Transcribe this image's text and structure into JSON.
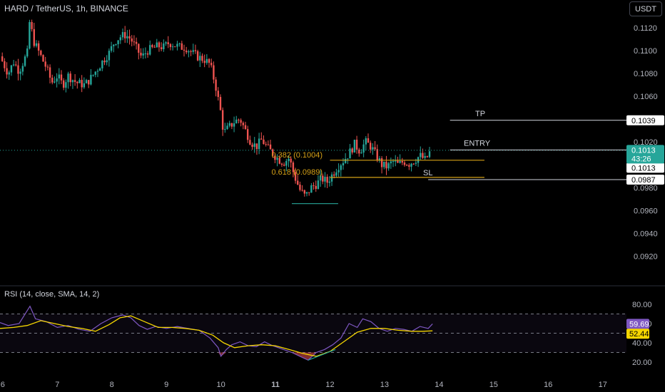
{
  "header": {
    "title": "HARD / TetherUS, 1h, BINANCE",
    "currency_button": "USDT"
  },
  "rsi": {
    "label": "RSI (14, close, SMA, 14, 2)",
    "value_rsi": "59.69",
    "value_sma": "52.44",
    "levels": [
      80,
      70,
      50,
      30,
      20
    ],
    "tick_labels": [
      "80.00",
      "60.00",
      "40.00",
      "20.00"
    ]
  },
  "colors": {
    "up": "#26a69a",
    "down": "#ef5350",
    "rsi_line": "#7e57c2",
    "rsi_sma": "#f5d600",
    "fib": "#d4a017",
    "level_line": "#d1d4dc",
    "last_price_bg": "#26a69a"
  },
  "chart_data": {
    "type": "candlestick",
    "symbol": "HARD / TetherUS",
    "interval": "1h",
    "exchange": "BINANCE",
    "y_ticks": [
      "0.1120",
      "0.1100",
      "0.1080",
      "0.1060",
      "0.1020",
      "0.0980",
      "0.0960",
      "0.0940",
      "0.0920"
    ],
    "y_tick_values": [
      0.112,
      0.11,
      0.108,
      0.106,
      0.102,
      0.098,
      0.096,
      0.094,
      0.092
    ],
    "x_ticks": [
      "6",
      "7",
      "8",
      "9",
      "10",
      "11",
      "12",
      "13",
      "14",
      "15",
      "16",
      "17"
    ],
    "ylim": [
      0.0904,
      0.1135
    ],
    "last_price": {
      "value": "0.1013",
      "countdown": "43:26"
    },
    "levels": [
      {
        "label": "TP",
        "value": 0.1039,
        "tag": "0.1039"
      },
      {
        "label": "ENTRY",
        "value": 0.1013,
        "tag": "0.1013"
      },
      {
        "label": "SL",
        "value": 0.0987,
        "tag": "0.0987"
      }
    ],
    "fib": [
      {
        "label": "0.382 (0.1004)",
        "value": 0.1004
      },
      {
        "label": "0.618 (0.0989)",
        "value": 0.0989
      }
    ],
    "support_level": 0.0966,
    "close_path": [
      [
        5.95,
        0.1095
      ],
      [
        6.1,
        0.108
      ],
      [
        6.2,
        0.109
      ],
      [
        6.3,
        0.1082
      ],
      [
        6.45,
        0.1098
      ],
      [
        6.5,
        0.113
      ],
      [
        6.55,
        0.111
      ],
      [
        6.65,
        0.11
      ],
      [
        6.8,
        0.1085
      ],
      [
        6.9,
        0.1072
      ],
      [
        7.0,
        0.1078
      ],
      [
        7.1,
        0.107
      ],
      [
        7.2,
        0.1078
      ],
      [
        7.35,
        0.1072
      ],
      [
        7.5,
        0.107
      ],
      [
        7.6,
        0.1075
      ],
      [
        7.75,
        0.1085
      ],
      [
        7.85,
        0.1092
      ],
      [
        7.95,
        0.1098
      ],
      [
        8.05,
        0.1108
      ],
      [
        8.15,
        0.1112
      ],
      [
        8.25,
        0.1114
      ],
      [
        8.35,
        0.111
      ],
      [
        8.45,
        0.1102
      ],
      [
        8.55,
        0.1094
      ],
      [
        8.65,
        0.11
      ],
      [
        8.75,
        0.1102
      ],
      [
        8.85,
        0.1104
      ],
      [
        8.95,
        0.1103
      ],
      [
        9.05,
        0.1107
      ],
      [
        9.15,
        0.1105
      ],
      [
        9.25,
        0.1103
      ],
      [
        9.35,
        0.1103
      ],
      [
        9.5,
        0.1097
      ],
      [
        9.6,
        0.1094
      ],
      [
        9.7,
        0.1092
      ],
      [
        9.8,
        0.1088
      ],
      [
        9.9,
        0.107
      ],
      [
        10.0,
        0.1045
      ],
      [
        10.05,
        0.1028
      ],
      [
        10.15,
        0.1033
      ],
      [
        10.25,
        0.1038
      ],
      [
        10.35,
        0.104
      ],
      [
        10.45,
        0.103
      ],
      [
        10.55,
        0.102
      ],
      [
        10.65,
        0.1016
      ],
      [
        10.75,
        0.1022
      ],
      [
        10.85,
        0.1015
      ],
      [
        10.95,
        0.101
      ],
      [
        11.05,
        0.1005
      ],
      [
        11.15,
        0.1002
      ],
      [
        11.25,
        0.1006
      ],
      [
        11.35,
        0.099
      ],
      [
        11.45,
        0.0978
      ],
      [
        11.55,
        0.0972
      ],
      [
        11.65,
        0.098
      ],
      [
        11.75,
        0.0983
      ],
      [
        11.85,
        0.0988
      ],
      [
        11.95,
        0.0985
      ],
      [
        12.05,
        0.0992
      ],
      [
        12.15,
        0.0999
      ],
      [
        12.25,
        0.1004
      ],
      [
        12.35,
        0.101
      ],
      [
        12.45,
        0.1018
      ],
      [
        12.55,
        0.1012
      ],
      [
        12.65,
        0.102
      ],
      [
        12.75,
        0.1016
      ],
      [
        12.85,
        0.1008
      ],
      [
        12.95,
        0.1
      ],
      [
        13.05,
        0.0998
      ],
      [
        13.15,
        0.1003
      ],
      [
        13.25,
        0.1
      ],
      [
        13.35,
        0.1003
      ],
      [
        13.45,
        0.1001
      ],
      [
        13.55,
        0.1004
      ],
      [
        13.65,
        0.1008
      ],
      [
        13.75,
        0.1004
      ],
      [
        13.85,
        0.1013
      ]
    ],
    "rsi_series": [
      [
        5.95,
        61
      ],
      [
        6.1,
        58
      ],
      [
        6.3,
        60
      ],
      [
        6.5,
        78
      ],
      [
        6.6,
        65
      ],
      [
        6.8,
        62
      ],
      [
        7.0,
        56
      ],
      [
        7.2,
        58
      ],
      [
        7.4,
        54
      ],
      [
        7.6,
        52
      ],
      [
        7.8,
        60
      ],
      [
        8.0,
        66
      ],
      [
        8.2,
        69
      ],
      [
        8.35,
        66
      ],
      [
        8.5,
        58
      ],
      [
        8.65,
        54
      ],
      [
        8.8,
        57
      ],
      [
        9.0,
        55
      ],
      [
        9.2,
        57
      ],
      [
        9.4,
        55
      ],
      [
        9.6,
        53
      ],
      [
        9.8,
        45
      ],
      [
        9.95,
        35
      ],
      [
        10.0,
        26
      ],
      [
        10.1,
        33
      ],
      [
        10.2,
        38
      ],
      [
        10.35,
        41
      ],
      [
        10.5,
        37
      ],
      [
        10.65,
        36
      ],
      [
        10.8,
        41
      ],
      [
        10.95,
        37
      ],
      [
        11.1,
        34
      ],
      [
        11.3,
        30
      ],
      [
        11.45,
        26
      ],
      [
        11.6,
        22
      ],
      [
        11.75,
        30
      ],
      [
        11.9,
        33
      ],
      [
        12.05,
        38
      ],
      [
        12.2,
        45
      ],
      [
        12.35,
        60
      ],
      [
        12.5,
        56
      ],
      [
        12.6,
        65
      ],
      [
        12.75,
        62
      ],
      [
        12.9,
        55
      ],
      [
        13.05,
        52
      ],
      [
        13.2,
        55
      ],
      [
        13.35,
        54
      ],
      [
        13.5,
        52
      ],
      [
        13.65,
        57
      ],
      [
        13.8,
        55
      ],
      [
        13.88,
        59.69
      ]
    ],
    "rsi_sma_series": [
      [
        5.95,
        55
      ],
      [
        6.2,
        56
      ],
      [
        6.45,
        58
      ],
      [
        6.7,
        63
      ],
      [
        6.95,
        60
      ],
      [
        7.2,
        57
      ],
      [
        7.45,
        55
      ],
      [
        7.7,
        52
      ],
      [
        7.95,
        59
      ],
      [
        8.15,
        66
      ],
      [
        8.35,
        68
      ],
      [
        8.6,
        62
      ],
      [
        8.85,
        56
      ],
      [
        9.1,
        56
      ],
      [
        9.35,
        55
      ],
      [
        9.6,
        53
      ],
      [
        9.85,
        48
      ],
      [
        10.05,
        40
      ],
      [
        10.25,
        35
      ],
      [
        10.5,
        37
      ],
      [
        10.75,
        38
      ],
      [
        11.0,
        37
      ],
      [
        11.25,
        33
      ],
      [
        11.5,
        29
      ],
      [
        11.75,
        26
      ],
      [
        12.0,
        31
      ],
      [
        12.25,
        41
      ],
      [
        12.5,
        51
      ],
      [
        12.75,
        55
      ],
      [
        13.0,
        55
      ],
      [
        13.25,
        53
      ],
      [
        13.5,
        52
      ],
      [
        13.7,
        52
      ],
      [
        13.88,
        52.44
      ]
    ],
    "rsi_trendline": [
      [
        11.6,
        22
      ],
      [
        12.1,
        33
      ]
    ]
  }
}
